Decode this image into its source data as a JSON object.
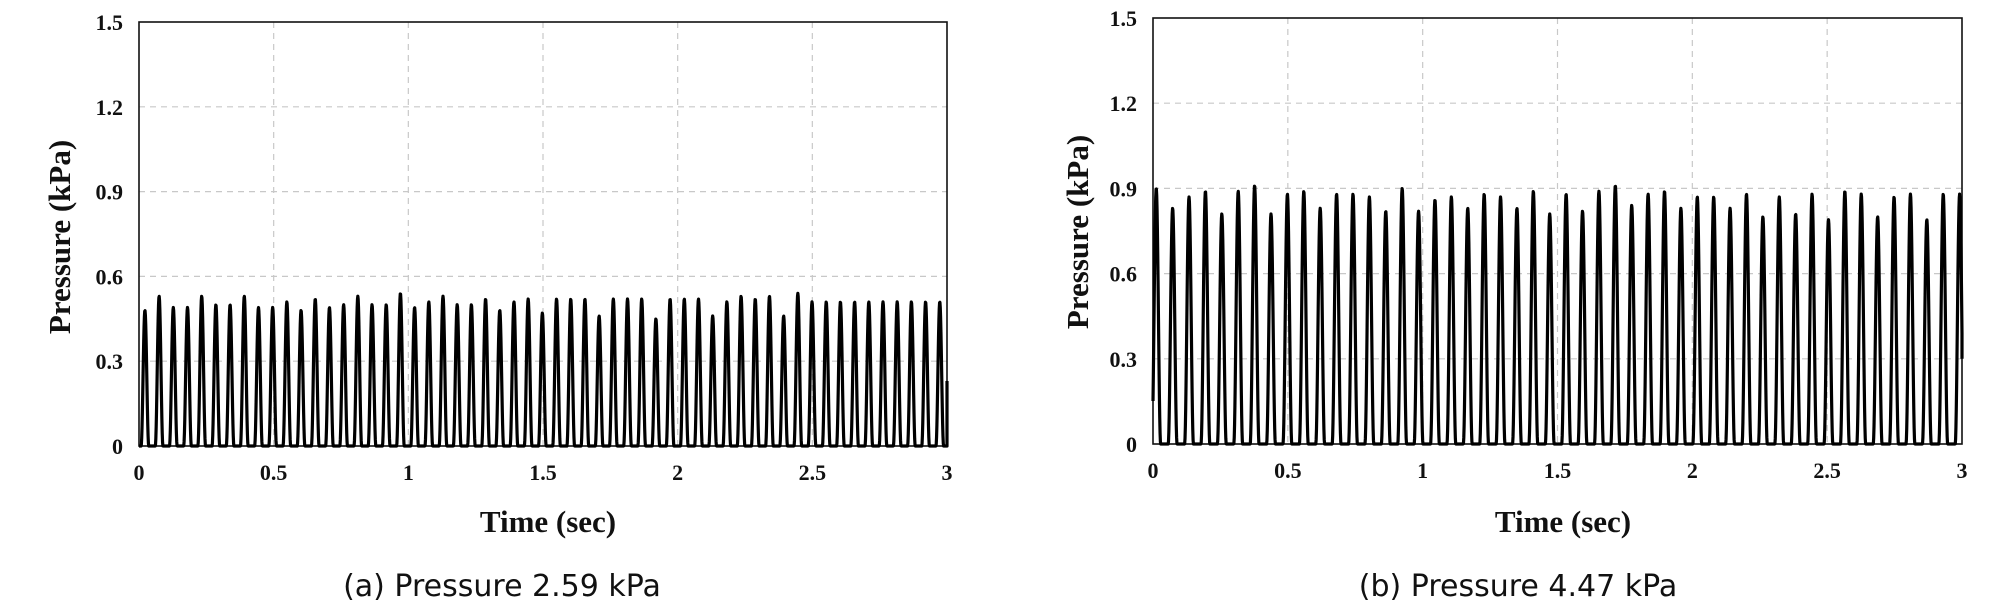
{
  "chart_data": [
    {
      "type": "line",
      "caption": "(a) Pressure 2.59 kPa",
      "xlabel": "Time (sec)",
      "ylabel": "Pressure (kPa)",
      "xlim": [
        0,
        3
      ],
      "ylim": [
        0,
        1.5
      ],
      "xticks": [
        "0",
        "0.5",
        "1",
        "1.5",
        "2",
        "2.5",
        "3"
      ],
      "yticks": [
        "0",
        "0.3",
        "0.6",
        "0.9",
        "1.2",
        "1.5"
      ],
      "grid": true,
      "series": [
        {
          "pulse_period_sec": 0.0527,
          "first_peak_time_sec": 0.022,
          "peak_values": [
            0.48,
            0.53,
            0.49,
            0.49,
            0.53,
            0.5,
            0.5,
            0.53,
            0.49,
            0.49,
            0.51,
            0.48,
            0.52,
            0.49,
            0.5,
            0.53,
            0.5,
            0.5,
            0.54,
            0.49,
            0.51,
            0.53,
            0.5,
            0.5,
            0.52,
            0.48,
            0.51,
            0.52,
            0.47,
            0.52,
            0.52,
            0.52,
            0.46,
            0.52,
            0.52,
            0.52,
            0.45,
            0.52,
            0.52,
            0.52,
            0.46,
            0.51,
            0.53,
            0.52,
            0.53,
            0.46,
            0.54,
            0.51,
            0.51,
            0.51,
            0.51,
            0.51,
            0.51,
            0.51,
            0.51,
            0.51,
            0.51
          ],
          "end_value": 0.23
        }
      ]
    },
    {
      "type": "line",
      "caption": "(b) Pressure 4.47 kPa",
      "xlabel": "Time (sec)",
      "ylabel": "Pressure (kPa)",
      "xlim": [
        0,
        3
      ],
      "ylim": [
        0,
        1.5
      ],
      "xticks": [
        "0",
        "0.5",
        "1",
        "1.5",
        "2",
        "2.5",
        "3"
      ],
      "yticks": [
        "0",
        "0.3",
        "0.6",
        "0.9",
        "1.2",
        "1.5"
      ],
      "grid": true,
      "series": [
        {
          "pulse_period_sec": 0.0608,
          "first_peak_time_sec": 0.012,
          "peak_values": [
            0.9,
            0.83,
            0.87,
            0.89,
            0.81,
            0.89,
            0.91,
            0.81,
            0.88,
            0.89,
            0.83,
            0.88,
            0.88,
            0.87,
            0.82,
            0.9,
            0.82,
            0.86,
            0.87,
            0.83,
            0.88,
            0.87,
            0.83,
            0.89,
            0.81,
            0.88,
            0.82,
            0.89,
            0.91,
            0.84,
            0.88,
            0.89,
            0.83,
            0.87,
            0.87,
            0.83,
            0.88,
            0.8,
            0.87,
            0.81,
            0.88,
            0.79,
            0.89,
            0.88,
            0.8,
            0.87,
            0.88,
            0.79,
            0.88,
            0.88,
            0.88,
            0.88,
            0.88
          ],
          "end_value": 0.3
        }
      ]
    }
  ]
}
